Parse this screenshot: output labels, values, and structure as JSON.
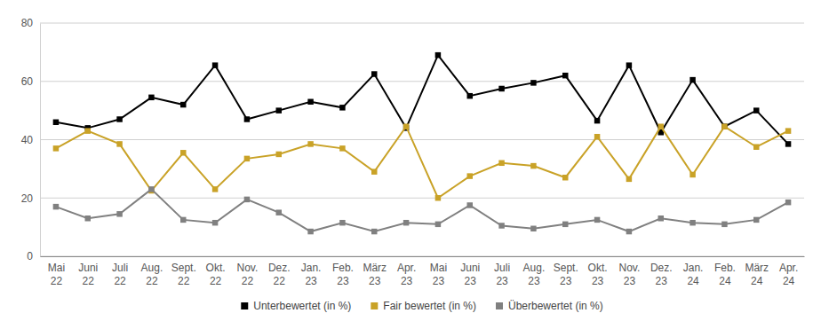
{
  "chart_data": {
    "type": "line",
    "categories": [
      "Mai\n22",
      "Juni\n22",
      "Juli\n22",
      "Aug.\n22",
      "Sept.\n22",
      "Okt.\n22",
      "Nov.\n22",
      "Dez.\n22",
      "Jan.\n23",
      "Feb.\n23",
      "März\n23",
      "Apr.\n23",
      "Mai\n23",
      "Juni\n23",
      "Juli\n23",
      "Aug.\n23",
      "Sept.\n23",
      "Okt.\n23",
      "Nov.\n23",
      "Dez.\n23",
      "Jan.\n24",
      "Feb.\n24",
      "März\n24",
      "Apr.\n24"
    ],
    "series": [
      {
        "name": "Unterbewertet (in %)",
        "color": "#000000",
        "marker": "square",
        "values": [
          46,
          44,
          47,
          54.5,
          52,
          65.5,
          47,
          50,
          53,
          51,
          62.5,
          44,
          69,
          55,
          57.5,
          59.5,
          62,
          46.5,
          65.5,
          42.5,
          60.5,
          44.5,
          50,
          38.5
        ]
      },
      {
        "name": "Fair bewertet (in %)",
        "color": "#c9a227",
        "marker": "square",
        "values": [
          37,
          43,
          38.5,
          22.5,
          35.5,
          23,
          33.5,
          35,
          38.5,
          37,
          29,
          44.5,
          20,
          27.5,
          32,
          31,
          27,
          41,
          26.5,
          44.5,
          28,
          44.5,
          37.5,
          43
        ]
      },
      {
        "name": "Überbewertet (in %)",
        "color": "#808080",
        "marker": "square",
        "values": [
          17,
          13,
          14.5,
          23,
          12.5,
          11.5,
          19.5,
          15,
          8.5,
          11.5,
          8.5,
          11.5,
          11,
          17.5,
          10.5,
          9.5,
          11,
          12.5,
          8.5,
          13,
          11.5,
          11,
          12.5,
          18.5
        ]
      }
    ],
    "ylim": [
      0,
      80
    ],
    "yticks": [
      0,
      20,
      40,
      60,
      80
    ],
    "grid": true,
    "legend": "bottom"
  }
}
